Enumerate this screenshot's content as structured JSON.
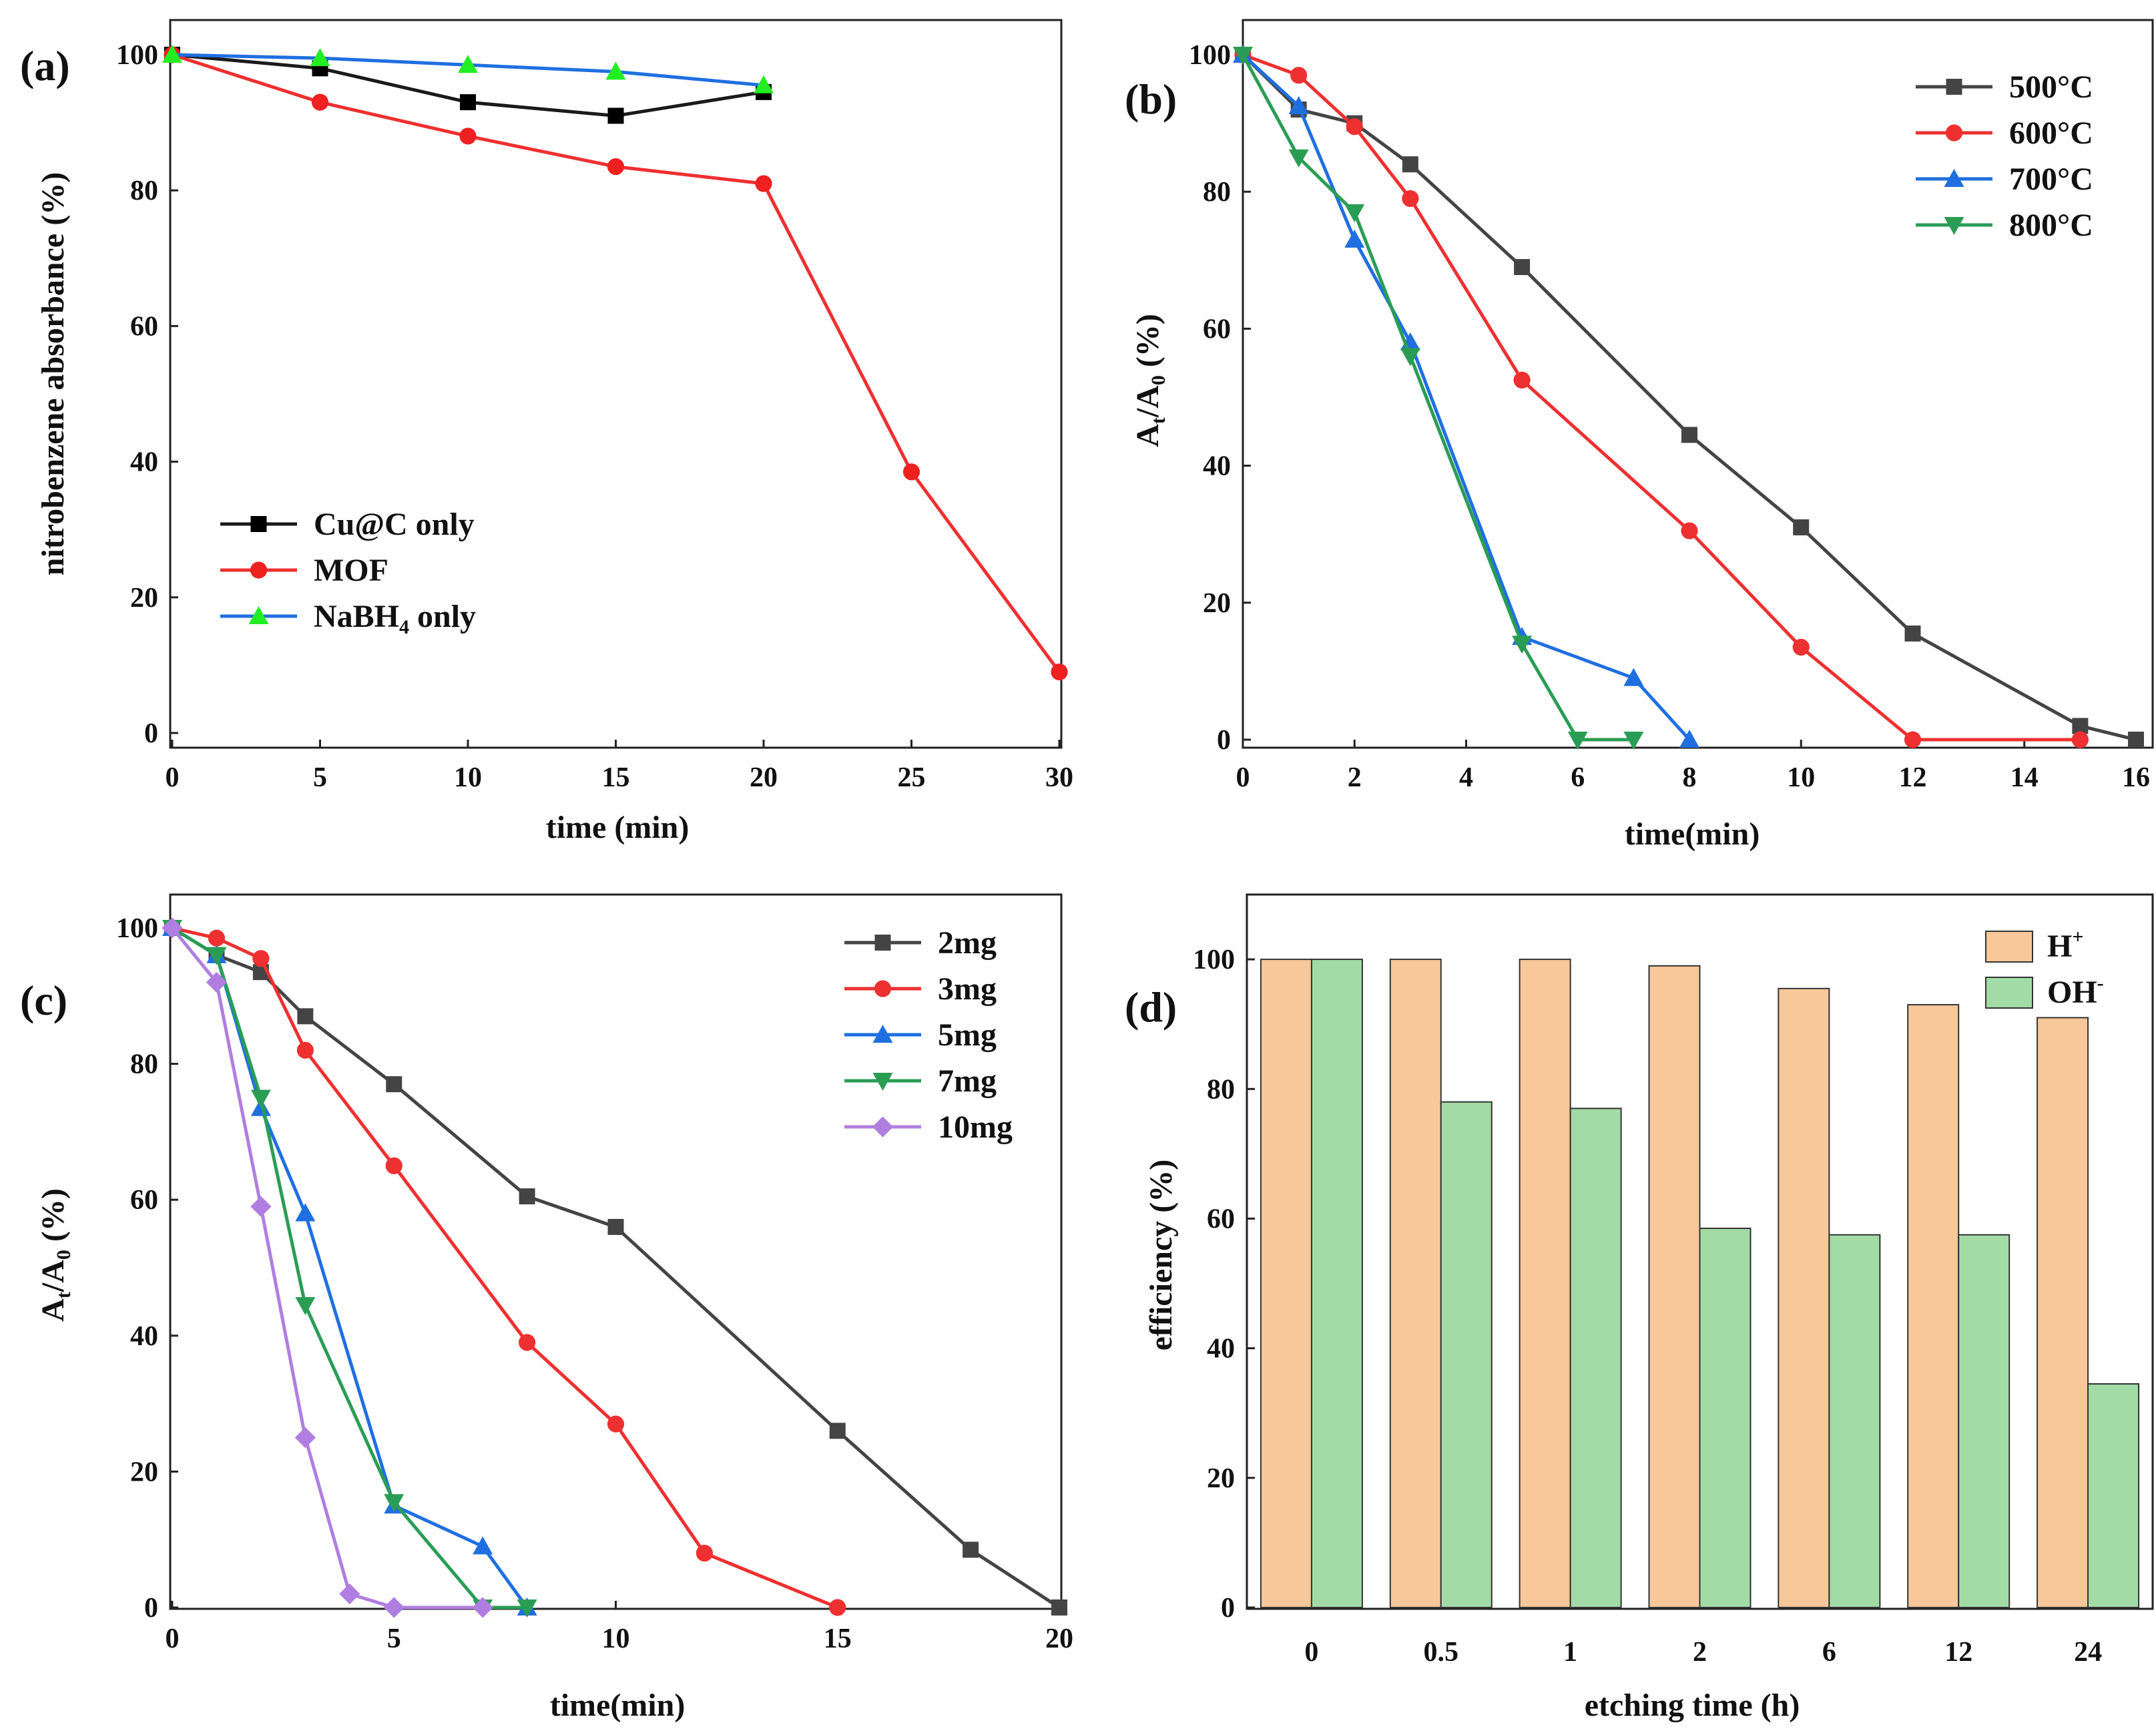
{
  "chart_data": [
    {
      "type": "line",
      "panel_label": "(a)",
      "xlabel": "time (min)",
      "ylabel": "nitrobenzene absorbance (%)",
      "xlim": [
        0,
        30
      ],
      "ylim": [
        0,
        100
      ],
      "xticks": [
        0,
        5,
        10,
        15,
        20,
        25,
        30
      ],
      "yticks": [
        0,
        20,
        40,
        60,
        80,
        100
      ],
      "legend_position": "bottom-left",
      "series": [
        {
          "name": "Cu@C only",
          "label_main": "Cu@C only",
          "marker": "square",
          "color": "#1a1a1a",
          "marker_color": "#000000",
          "x": [
            0,
            5,
            10,
            15,
            20
          ],
          "values": [
            100,
            98,
            93,
            91,
            94.5
          ]
        },
        {
          "name": "MOF",
          "label_main": "MOF",
          "marker": "circle",
          "color": "#ee3030",
          "marker_color": "#ee2020",
          "x": [
            0,
            5,
            10,
            15,
            20,
            25,
            30
          ],
          "values": [
            100,
            93,
            88,
            83.5,
            81,
            38.5,
            9
          ]
        },
        {
          "name": "NaBH4 only",
          "label_main": "NaBH",
          "label_sub": "4",
          "label_tail": " only",
          "marker": "triangle-up",
          "color": "#1f6fe0",
          "marker_color": "#22ee22",
          "x": [
            0,
            5,
            10,
            15,
            20
          ],
          "values": [
            100,
            99.5,
            98.5,
            97.5,
            95.5
          ]
        }
      ]
    },
    {
      "type": "line",
      "panel_label": "(b)",
      "xlabel": "time(min)",
      "ylabel_main": "A",
      "ylabel_sub1": "t",
      "ylabel_mid": "/A",
      "ylabel_sub2": "0",
      "ylabel_tail": " (%)",
      "xlim": [
        0,
        16
      ],
      "ylim": [
        0,
        100
      ],
      "xticks": [
        0,
        2,
        4,
        6,
        8,
        10,
        12,
        14,
        16
      ],
      "yticks": [
        0,
        20,
        40,
        60,
        80,
        100
      ],
      "legend_position": "top-right",
      "series": [
        {
          "name": "500°C",
          "label_main": "500°C",
          "marker": "square",
          "color": "#444444",
          "marker_color": "#444444",
          "x": [
            0,
            1,
            2,
            3,
            5,
            8,
            10,
            12,
            15,
            16
          ],
          "values": [
            100,
            92,
            90,
            84,
            69,
            44.5,
            31,
            15.5,
            2,
            0
          ]
        },
        {
          "name": "600°C",
          "label_main": "600°C",
          "marker": "circle",
          "color": "#ee3030",
          "marker_color": "#ee3030",
          "x": [
            0,
            1,
            2,
            3,
            5,
            8,
            10,
            12,
            15
          ],
          "values": [
            100,
            97,
            89.5,
            79,
            52.5,
            30.5,
            13.5,
            0,
            0
          ]
        },
        {
          "name": "700°C",
          "label_main": "700°C",
          "marker": "triangle-up",
          "color": "#1f6fe0",
          "marker_color": "#1f6fe0",
          "x": [
            0,
            1,
            2,
            3,
            5,
            7,
            8
          ],
          "values": [
            100,
            92.5,
            73,
            58,
            15,
            9,
            0
          ]
        },
        {
          "name": "800°C",
          "label_main": "800°C",
          "marker": "triangle-down",
          "color": "#2a9d55",
          "marker_color": "#2a9d55",
          "x": [
            0,
            1,
            2,
            3,
            5,
            6,
            7
          ],
          "values": [
            100,
            85,
            77,
            56,
            14,
            0,
            0
          ]
        }
      ]
    },
    {
      "type": "line",
      "panel_label": "(c)",
      "xlabel": "time(min)",
      "ylabel_main": "A",
      "ylabel_sub1": "t",
      "ylabel_mid": "/A",
      "ylabel_sub2": "0",
      "ylabel_tail": " (%)",
      "xlim": [
        0,
        20
      ],
      "ylim": [
        0,
        100
      ],
      "xticks": [
        0,
        5,
        10,
        15,
        20
      ],
      "yticks": [
        0,
        20,
        40,
        60,
        80,
        100
      ],
      "legend_position": "top-right",
      "series": [
        {
          "name": "2mg",
          "label_main": "2mg",
          "marker": "square",
          "color": "#444444",
          "marker_color": "#444444",
          "x": [
            0,
            1,
            2,
            3,
            5,
            8,
            10,
            15,
            18,
            20
          ],
          "values": [
            100,
            96,
            93.5,
            87,
            77,
            60.5,
            56,
            26,
            8.5,
            0
          ]
        },
        {
          "name": "3mg",
          "label_main": "3mg",
          "marker": "circle",
          "color": "#ee3030",
          "marker_color": "#ee3030",
          "x": [
            0,
            1,
            2,
            3,
            5,
            8,
            10,
            12,
            15
          ],
          "values": [
            100,
            98.5,
            95.5,
            82,
            65,
            39,
            27,
            8,
            0
          ]
        },
        {
          "name": "5mg",
          "label_main": "5mg",
          "marker": "triangle-up",
          "color": "#1f6fe0",
          "marker_color": "#1f6fe0",
          "x": [
            0,
            1,
            2,
            3,
            5,
            7,
            8
          ],
          "values": [
            100,
            96,
            73.5,
            58,
            15,
            9,
            0
          ]
        },
        {
          "name": "7mg",
          "label_main": "7mg",
          "marker": "triangle-down",
          "color": "#2a9d55",
          "marker_color": "#2a9d55",
          "x": [
            0,
            1,
            2,
            3,
            5,
            7,
            8
          ],
          "values": [
            100,
            96,
            75,
            44.5,
            15.5,
            0,
            0
          ]
        },
        {
          "name": "10mg",
          "label_main": "10mg",
          "marker": "diamond",
          "color": "#b07ee0",
          "marker_color": "#b07ee0",
          "x": [
            0,
            1,
            2,
            3,
            4,
            5,
            7
          ],
          "values": [
            100,
            92,
            59,
            25,
            2,
            0,
            0
          ]
        }
      ]
    },
    {
      "type": "bar",
      "panel_label": "(d)",
      "xlabel": "etching time (h)",
      "ylabel": "efficiency (%)",
      "ylim": [
        0,
        110
      ],
      "yticks": [
        0,
        20,
        40,
        60,
        80,
        100
      ],
      "legend_position": "top-right",
      "categories": [
        "0",
        "0.5",
        "1",
        "2",
        "6",
        "12",
        "24"
      ],
      "series": [
        {
          "name": "H+",
          "label_main": "H",
          "label_sup": "+",
          "color": "#f8c89a",
          "values": [
            100,
            100,
            100,
            99,
            95.5,
            93,
            91
          ]
        },
        {
          "name": "OH-",
          "label_main": "OH",
          "label_sup": "-",
          "color": "#a3dba6",
          "values": [
            100,
            78,
            77,
            58.5,
            57.5,
            57.5,
            34.5
          ]
        }
      ]
    }
  ]
}
